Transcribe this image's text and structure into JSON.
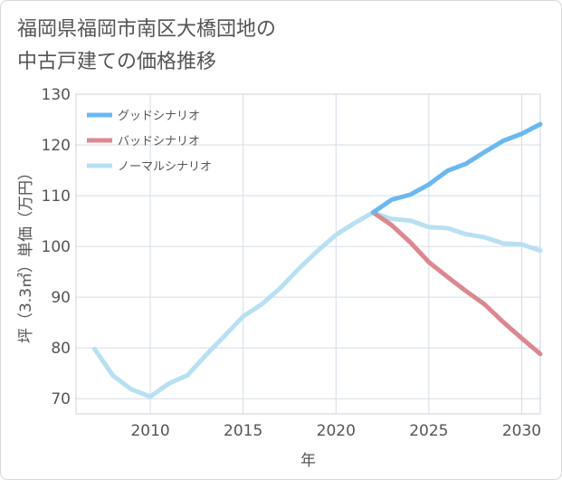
{
  "title_lines": [
    "福岡県福岡市南区大橋団地の",
    "中古戸建ての価格推移"
  ],
  "chart_data": {
    "type": "line",
    "title": "福岡県福岡市南区大橋団地の中古戸建ての価格推移",
    "xlabel": "年",
    "ylabel": "坪（3.3㎡）単価（万円）",
    "xlim": [
      2006,
      2031
    ],
    "ylim": [
      67,
      130
    ],
    "x_ticks": [
      2010,
      2015,
      2020,
      2025,
      2030
    ],
    "y_ticks": [
      70,
      80,
      90,
      100,
      110,
      120,
      130
    ],
    "grid": true,
    "legend_position": "top-left",
    "series": [
      {
        "name": "グッドシナリオ",
        "color": "#6bb8f0",
        "x": [
          2022,
          2023,
          2024,
          2025,
          2026,
          2027,
          2028,
          2029,
          2030,
          2031
        ],
        "values": [
          106.7,
          109.2,
          110.2,
          112.2,
          114.9,
          116.3,
          118.6,
          120.8,
          122.2,
          124.1
        ]
      },
      {
        "name": "バッドシナリオ",
        "color": "#dc8890",
        "x": [
          2022,
          2023,
          2024,
          2025,
          2026,
          2027,
          2028,
          2029,
          2030,
          2031
        ],
        "values": [
          106.7,
          104.2,
          100.8,
          96.9,
          94.0,
          91.2,
          88.6,
          85.1,
          81.9,
          78.8
        ]
      },
      {
        "name": "ノーマルシナリオ",
        "color": "#b8e0f2",
        "x": [
          2007,
          2008,
          2009,
          2010,
          2011,
          2012,
          2013,
          2014,
          2015,
          2016,
          2017,
          2018,
          2019,
          2020,
          2021,
          2022,
          2023,
          2024,
          2025,
          2026,
          2027,
          2028,
          2029,
          2030,
          2031
        ],
        "values": [
          79.8,
          74.5,
          71.8,
          70.4,
          73.0,
          74.6,
          78.6,
          82.4,
          86.2,
          88.6,
          91.8,
          95.6,
          99.1,
          102.3,
          104.6,
          106.7,
          105.4,
          105.1,
          103.8,
          103.6,
          102.4,
          101.8,
          100.6,
          100.4,
          99.2
        ]
      }
    ]
  }
}
